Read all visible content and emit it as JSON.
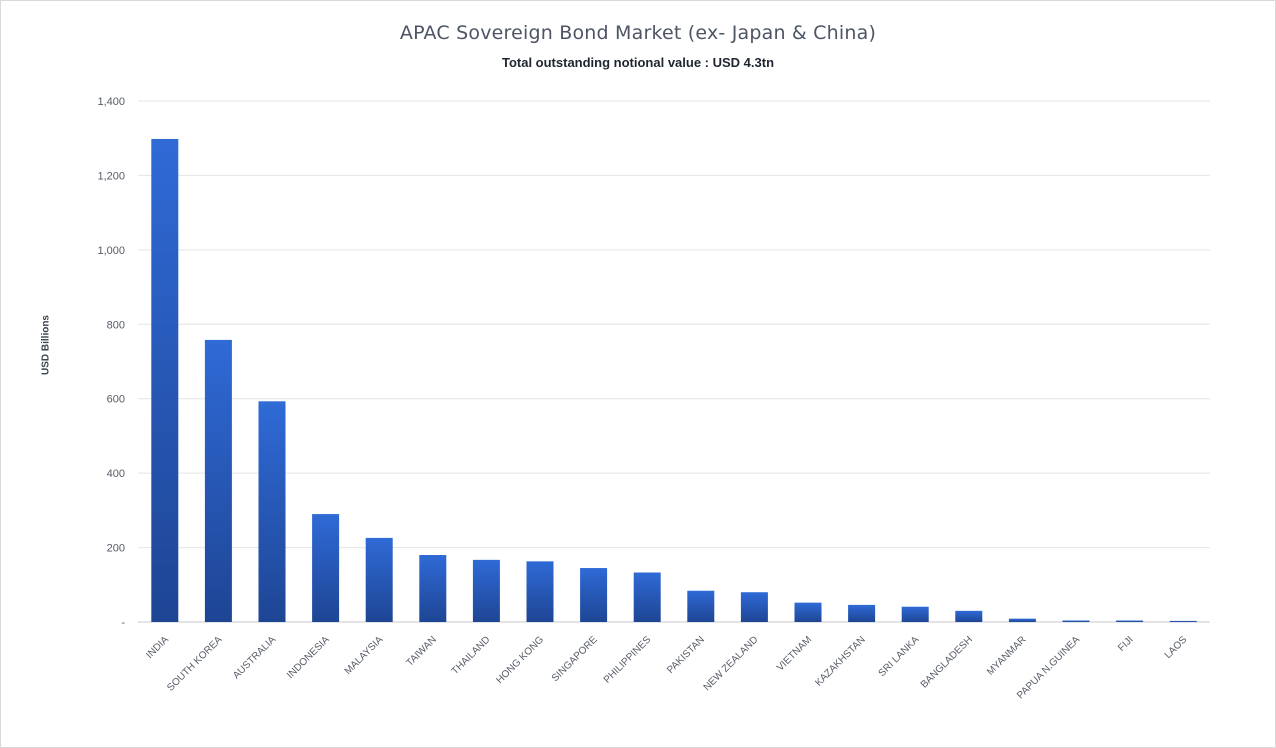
{
  "chart_data": {
    "type": "bar",
    "title": "APAC Sovereign Bond Market (ex- Japan & China)",
    "subtitle": "Total outstanding notional value : USD 4.3tn",
    "xlabel": "",
    "ylabel": "USD Billions",
    "ylim": [
      0,
      1400
    ],
    "yticks": [
      0,
      200,
      400,
      600,
      800,
      1000,
      1200,
      1400
    ],
    "ytick_labels": [
      "-",
      "200",
      "400",
      "600",
      "800",
      "1,000",
      "1,200",
      "1,400"
    ],
    "grid": true,
    "legend": "none",
    "categories": [
      "INDIA",
      "SOUTH KOREA",
      "AUSTRALIA",
      "INDONESIA",
      "MALAYSIA",
      "TAIWAN",
      "THAILAND",
      "HONG KONG",
      "SINGAPORE",
      "PHILIPPINES",
      "PAKISTAN",
      "NEW ZEALAND",
      "VIETNAM",
      "KAZAKHSTAN",
      "SRI LANKA",
      "BANGLADESH",
      "MYANMAR",
      "PAPUA N.GUINEA",
      "FIJI",
      "LAOS"
    ],
    "values": [
      1298,
      758,
      593,
      290,
      226,
      180,
      167,
      163,
      145,
      133,
      84,
      80,
      52,
      46,
      41,
      30,
      9,
      4,
      4,
      3
    ],
    "colors": {
      "bar_top": "#2f6ad6",
      "bar_bottom": "#1e4594",
      "grid": "#e4e4e4",
      "axis": "#c8c8c8"
    }
  }
}
